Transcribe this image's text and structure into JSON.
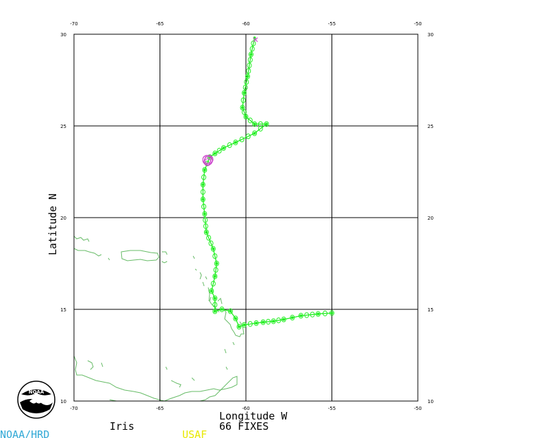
{
  "map": {
    "xlabel": "Longitude W",
    "ylabel": "Latitude N",
    "lon_range": [
      -70,
      -50
    ],
    "lat_range": [
      10,
      30
    ],
    "x_ticks": [
      "-70",
      "-65",
      "-60",
      "-55",
      "-50"
    ],
    "y_ticks": [
      "10",
      "15",
      "20",
      "25",
      "30"
    ],
    "grid": true
  },
  "footer": {
    "storm_name": "Iris",
    "fix_count": "66 FIXES",
    "source_usaf": "USAF",
    "source_noaa": "NOAA/HRD",
    "logo_text": "NOAA"
  },
  "colors": {
    "track": "#22ee22",
    "coast": "#66bb66",
    "end_marker": "#cc44cc",
    "usaf": "#e8e800",
    "noaa": "#33a9d6",
    "grid": "#000000"
  },
  "chart_data": {
    "type": "scatter",
    "title": "",
    "xlabel": "Longitude W",
    "ylabel": "Latitude N",
    "xlim": [
      -70,
      -50
    ],
    "ylim": [
      10,
      30
    ],
    "series": [
      {
        "values": [
          {
            "lon": -55.0,
            "lat": 14.8
          },
          {
            "lon": -55.8,
            "lat": 14.75
          },
          {
            "lon": -56.8,
            "lat": 14.65
          },
          {
            "lon": -57.3,
            "lat": 14.55
          },
          {
            "lon": -57.8,
            "lat": 14.45
          },
          {
            "lon": -58.4,
            "lat": 14.35
          },
          {
            "lon": -59.0,
            "lat": 14.3
          },
          {
            "lon": -59.4,
            "lat": 14.25
          },
          {
            "lon": -60.1,
            "lat": 14.15
          },
          {
            "lon": -60.4,
            "lat": 14.05
          },
          {
            "lon": -60.6,
            "lat": 14.5
          },
          {
            "lon": -60.9,
            "lat": 14.9
          },
          {
            "lon": -61.4,
            "lat": 15.0
          },
          {
            "lon": -61.8,
            "lat": 14.9
          },
          {
            "lon": -61.8,
            "lat": 15.6
          },
          {
            "lon": -62.0,
            "lat": 16.0
          },
          {
            "lon": -61.8,
            "lat": 16.8
          },
          {
            "lon": -61.7,
            "lat": 17.5
          },
          {
            "lon": -61.9,
            "lat": 18.3
          },
          {
            "lon": -62.3,
            "lat": 19.2
          },
          {
            "lon": -62.4,
            "lat": 20.2
          },
          {
            "lon": -62.5,
            "lat": 21.0
          },
          {
            "lon": -62.5,
            "lat": 21.8
          },
          {
            "lon": -62.4,
            "lat": 22.6
          },
          {
            "lon": -62.1,
            "lat": 23.3
          },
          {
            "lon": -61.8,
            "lat": 23.5
          },
          {
            "lon": -61.3,
            "lat": 23.8
          },
          {
            "lon": -60.6,
            "lat": 24.1
          },
          {
            "lon": -59.5,
            "lat": 24.6
          },
          {
            "lon": -58.8,
            "lat": 25.1
          },
          {
            "lon": -59.5,
            "lat": 25.1
          },
          {
            "lon": -60.0,
            "lat": 25.5
          },
          {
            "lon": -60.2,
            "lat": 26.0
          },
          {
            "lon": -60.1,
            "lat": 26.8
          },
          {
            "lon": -59.9,
            "lat": 27.7
          },
          {
            "lon": -59.7,
            "lat": 28.9
          },
          {
            "lon": -59.5,
            "lat": 29.8
          }
        ]
      }
    ]
  }
}
